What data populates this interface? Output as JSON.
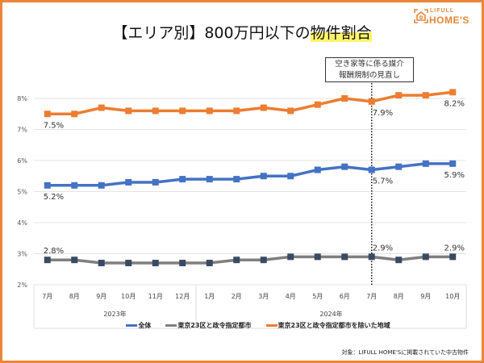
{
  "title_prefix": "【エリア別】800万円以下の",
  "title_highlight": "物件割合",
  "logo": {
    "line1": "LIFULL",
    "line2": "HOME'S"
  },
  "annotation": {
    "line1": "空き家等に係る媒介",
    "line2": "報酬規制の見直し"
  },
  "footnote": "対象：LIFULL HOME'Sに掲載されていた中古物件",
  "chart_data": {
    "type": "line",
    "categories": [
      "7月",
      "8月",
      "9月",
      "10月",
      "11月",
      "12月",
      "1月",
      "2月",
      "3月",
      "4月",
      "5月",
      "6月",
      "7月",
      "8月",
      "9月",
      "10月"
    ],
    "year_groups": [
      {
        "label": "2023年",
        "count": 6
      },
      {
        "label": "2024年",
        "count": 10
      }
    ],
    "ylim": [
      2,
      8
    ],
    "yticks": [
      "2%",
      "3%",
      "4%",
      "5%",
      "6%",
      "7%",
      "8%"
    ],
    "grid": true,
    "legend_position": "bottom",
    "marker_line_category": "7月 (2024年)",
    "series": [
      {
        "name": "全体",
        "color": "#4472c4",
        "marker_color": "#4472c4",
        "values": [
          5.2,
          5.2,
          5.2,
          5.3,
          5.3,
          5.4,
          5.4,
          5.4,
          5.5,
          5.5,
          5.7,
          5.8,
          5.7,
          5.8,
          5.9,
          5.9
        ],
        "labels": [
          {
            "index": 0,
            "text": "5.2%"
          },
          {
            "index": 12,
            "text": "5.7%"
          },
          {
            "index": 15,
            "text": "5.9%"
          }
        ]
      },
      {
        "name": "東京23区と政令指定都市",
        "color": "#7f7f7f",
        "marker_color": "#3a4a63",
        "values": [
          2.8,
          2.8,
          2.7,
          2.7,
          2.7,
          2.7,
          2.7,
          2.8,
          2.8,
          2.9,
          2.9,
          2.9,
          2.9,
          2.8,
          2.9,
          2.9
        ],
        "labels": [
          {
            "index": 0,
            "text": "2.8%"
          },
          {
            "index": 12,
            "text": "2.9%"
          },
          {
            "index": 15,
            "text": "2.9%"
          }
        ]
      },
      {
        "name": "東京23区と政令指定都市を除いた地域",
        "color": "#ed7d31",
        "marker_color": "#ed7d31",
        "values": [
          7.5,
          7.5,
          7.7,
          7.6,
          7.6,
          7.6,
          7.6,
          7.6,
          7.7,
          7.6,
          7.8,
          8.0,
          7.9,
          8.1,
          8.1,
          8.2
        ],
        "labels": [
          {
            "index": 0,
            "text": "7.5%"
          },
          {
            "index": 12,
            "text": "7.9%"
          },
          {
            "index": 15,
            "text": "8.2%"
          }
        ]
      }
    ]
  }
}
